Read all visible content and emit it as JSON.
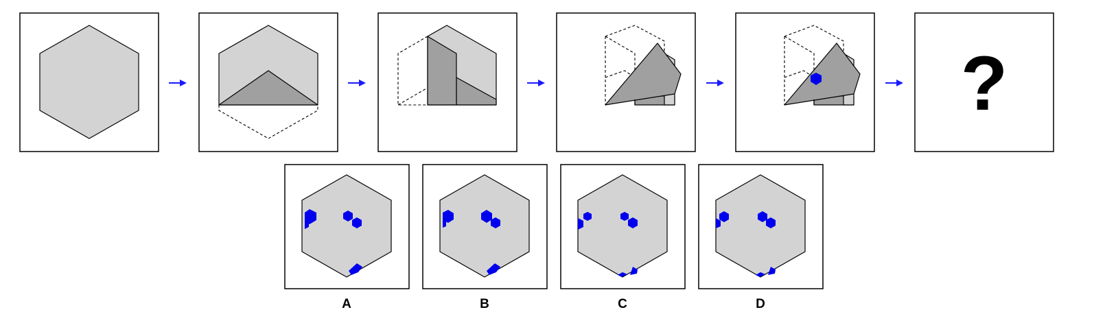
{
  "question_mark": "?",
  "options": [
    {
      "label": "A"
    },
    {
      "label": "B"
    },
    {
      "label": "C"
    },
    {
      "label": "D"
    }
  ],
  "colors": {
    "paper": "#d3d3d3",
    "folded_paper": "#a0a0a0",
    "hole": "#0000ee",
    "arrow": "#1a1aff",
    "frame": "#000000"
  }
}
